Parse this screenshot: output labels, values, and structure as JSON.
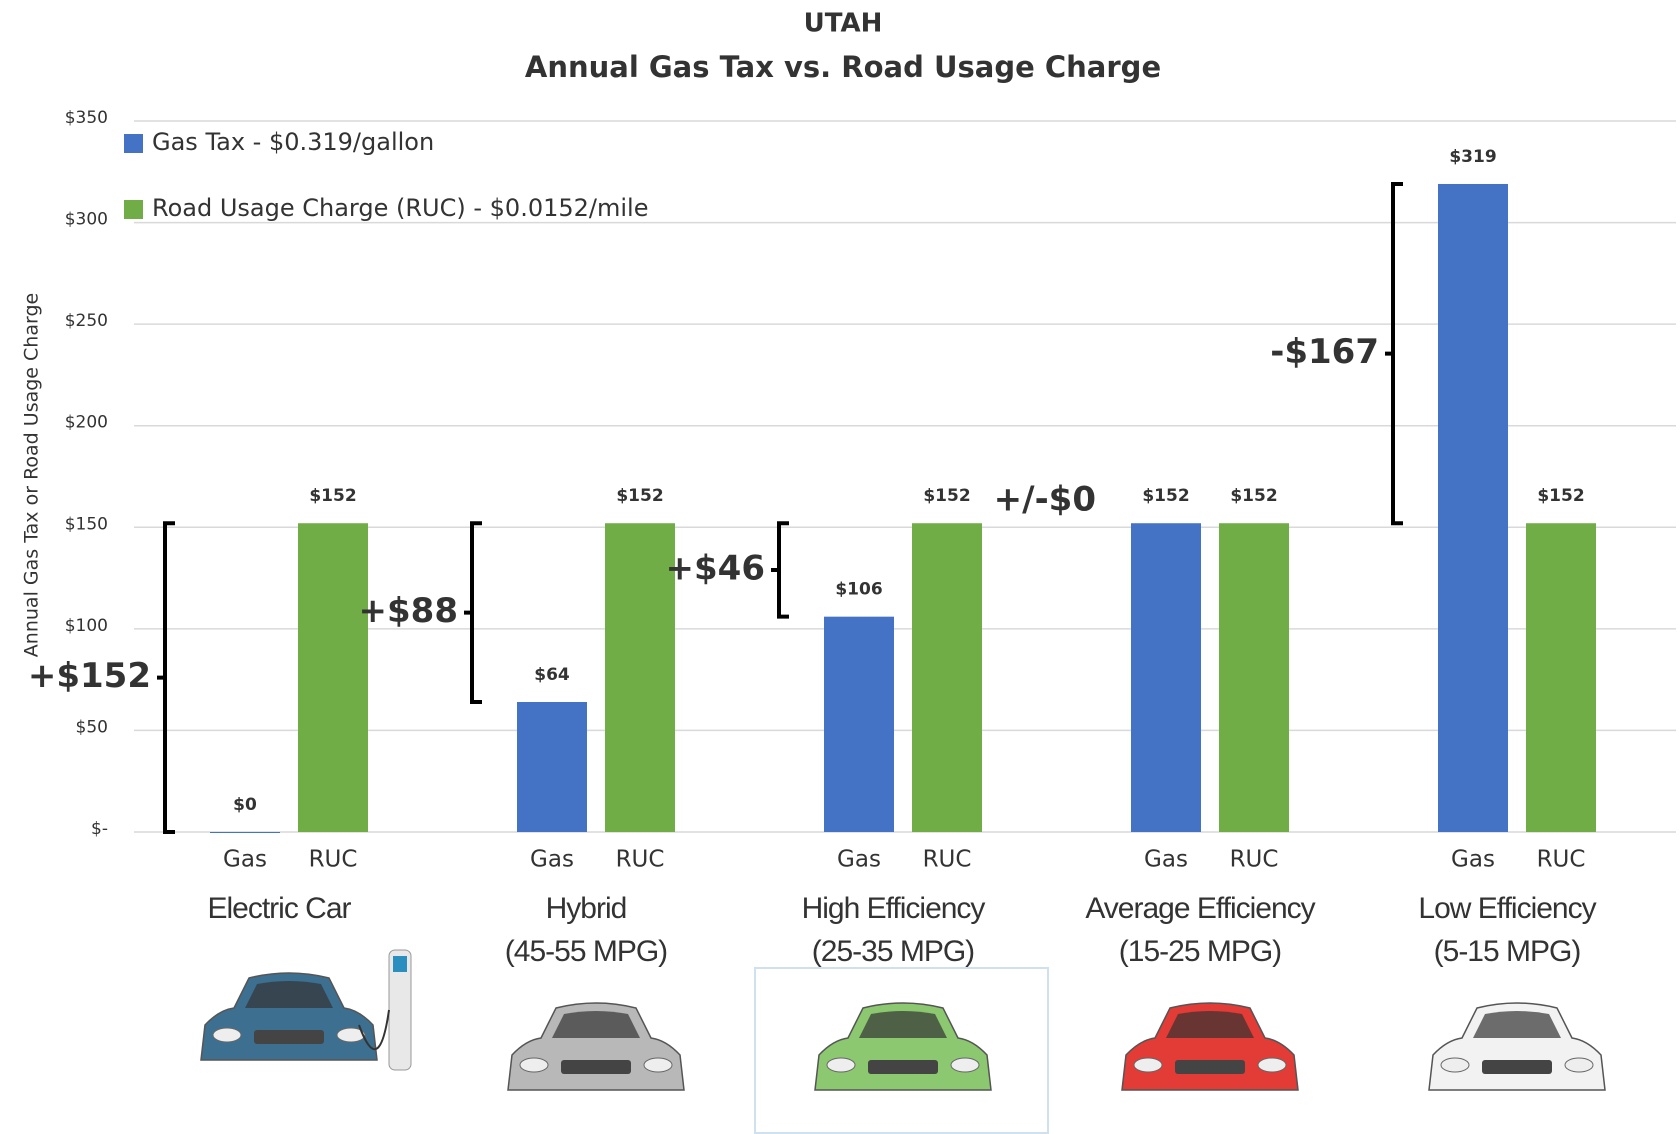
{
  "chart_data": {
    "type": "bar",
    "title": "UTAH",
    "subtitle": "Annual Gas Tax vs. Road Usage Charge",
    "y_label": "Annual Gas Tax or Road Usage Charge",
    "categories": [
      [
        "Electric Car"
      ],
      [
        "Hybrid",
        "(45-55 MPG)"
      ],
      [
        "High Efficiency",
        "(25-35 MPG)"
      ],
      [
        "Average Efficiency",
        "(15-25 MPG)"
      ],
      [
        "Low Efficiency",
        "(5-15 MPG)"
      ]
    ],
    "category_colors": [
      "#5b9bd5",
      "#a6a6a6",
      "#70ad47",
      "#e8413c",
      "#111111"
    ],
    "bar_labels": [
      "Gas",
      "RUC"
    ],
    "series": [
      {
        "name": "Gas Tax - $0.319/gallon",
        "color": "#4472c4",
        "values": [
          0,
          64,
          106,
          152,
          319
        ],
        "value_labels": [
          "$0",
          "$64",
          "$106",
          "$152",
          "$319"
        ]
      },
      {
        "name": "Road Usage Charge (RUC) - $0.0152/mile",
        "color": "#70ad47",
        "values": [
          152,
          152,
          152,
          152,
          152
        ],
        "value_labels": [
          "$152",
          "$152",
          "$152",
          "$152",
          "$152"
        ]
      }
    ],
    "annotations": [
      "+$152",
      "+$88",
      "+$46",
      "+/-$0",
      "-$167"
    ],
    "ylim": [
      0,
      350
    ],
    "yticks": [
      {
        "value": 0,
        "label": "$-"
      },
      {
        "value": 50,
        "label": "$50"
      },
      {
        "value": 100,
        "label": "$100"
      },
      {
        "value": 150,
        "label": "$150"
      },
      {
        "value": 200,
        "label": "$200"
      },
      {
        "value": 250,
        "label": "$250"
      },
      {
        "value": 300,
        "label": "$300"
      },
      {
        "value": 350,
        "label": "$350"
      }
    ],
    "grid": true,
    "legend": "upper left"
  }
}
